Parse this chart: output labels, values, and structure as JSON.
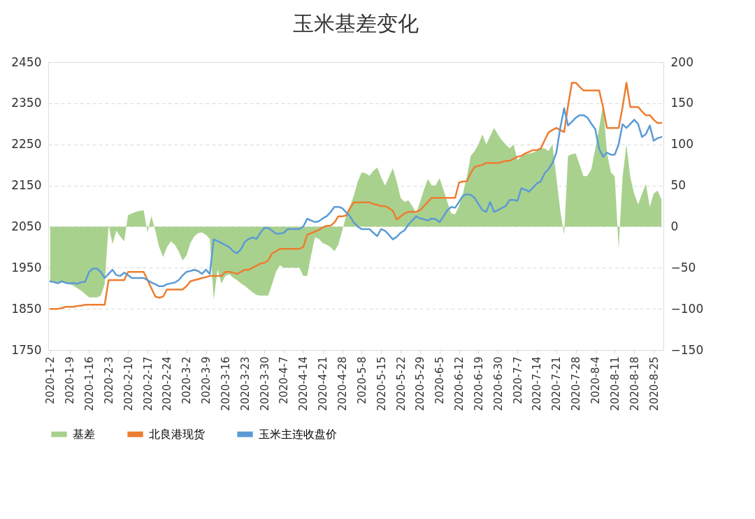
{
  "chart_data": {
    "type": "line",
    "title": "玉米基差变化",
    "categories": [
      "2020-1-2",
      null,
      null,
      null,
      null,
      "2020-1-9",
      null,
      null,
      null,
      null,
      "2020-1-16",
      null,
      null,
      null,
      null,
      "2020-2-3",
      null,
      null,
      null,
      null,
      "2020-2-10",
      null,
      null,
      null,
      null,
      "2020-2-17",
      null,
      null,
      null,
      null,
      "2020-2-24",
      null,
      null,
      null,
      null,
      "2020-3-2",
      null,
      null,
      null,
      null,
      "2020-3-9",
      null,
      null,
      null,
      null,
      "2020-3-16",
      null,
      null,
      null,
      null,
      "2020-3-23",
      null,
      null,
      null,
      null,
      "2020-3-30",
      null,
      null,
      null,
      null,
      "2020-4-7",
      null,
      null,
      null,
      null,
      "2020-4-14",
      null,
      null,
      null,
      null,
      "2020-4-21",
      null,
      null,
      null,
      null,
      "2020-4-28",
      null,
      null,
      null,
      null,
      "2020-5-8",
      null,
      null,
      null,
      null,
      "2020-5-15",
      null,
      null,
      null,
      null,
      "2020-5-22",
      null,
      null,
      null,
      null,
      "2020-5-29",
      null,
      null,
      null,
      null,
      "2020-6-5",
      null,
      null,
      null,
      null,
      "2020-6-12",
      null,
      null,
      null,
      null,
      "2020-6-19",
      null,
      null,
      null,
      null,
      "2020-6-30",
      null,
      null,
      null,
      null,
      "2020-7-7",
      null,
      null,
      null,
      null,
      "2020-7-14",
      null,
      null,
      null,
      null,
      "2020-7-21",
      null,
      null,
      null,
      null,
      "2020-7-28",
      null,
      null,
      null,
      null,
      "2020-8-4",
      null,
      null,
      null,
      null,
      "2020-8-11",
      null,
      null,
      null,
      null,
      "2020-8-18",
      null,
      null,
      null,
      null,
      "2020-8-25",
      null,
      null
    ],
    "series": [
      {
        "name": "基差",
        "type": "area",
        "axis": "y2",
        "color": "#a9d18e",
        "values": [
          -67,
          -68,
          -68,
          -68,
          -68,
          -70,
          -72,
          -75,
          -78,
          -82,
          -86,
          -86,
          -86,
          -84,
          -70,
          2,
          -21,
          -5,
          -12,
          -18,
          14,
          16,
          18,
          19,
          20,
          -7,
          13,
          -5,
          -25,
          -37,
          -25,
          -18,
          -22,
          -30,
          -41,
          -35,
          -20,
          -12,
          -8,
          -7,
          -10,
          -15,
          -89,
          -52,
          -69,
          -60,
          -58,
          -62,
          -65,
          -69,
          -72,
          -76,
          -80,
          -83,
          -84,
          -84,
          -84,
          -70,
          -55,
          -47,
          -50,
          -50,
          -50,
          -50,
          -50,
          -60,
          -60,
          -35,
          -13,
          -15,
          -20,
          -22,
          -25,
          -30,
          -22,
          -5,
          13,
          25,
          38,
          55,
          66,
          65,
          62,
          68,
          72,
          60,
          50,
          60,
          71,
          55,
          35,
          30,
          32,
          25,
          16,
          30,
          45,
          58,
          50,
          50,
          59,
          45,
          30,
          16,
          15,
          25,
          40,
          60,
          86,
          92,
          100,
          112,
          100,
          110,
          120,
          112,
          105,
          100,
          95,
          100,
          81,
          85,
          88,
          89,
          90,
          92,
          95,
          95,
          92,
          100,
          60,
          20,
          -10,
          86,
          88,
          89,
          75,
          61,
          62,
          70,
          95,
          120,
          149,
          90,
          66,
          61,
          -27,
          60,
          100,
          60,
          40,
          27,
          40,
          52,
          24,
          40,
          44,
          33
        ]
      },
      {
        "name": "北良港现货",
        "color": "#ed7d31",
        "values": [
          1850,
          1850,
          1850,
          1852,
          1855,
          1855,
          1855,
          1857,
          1858,
          1860,
          1860,
          1860,
          1860,
          1860,
          1860,
          1920,
          1920,
          1920,
          1920,
          1920,
          1940,
          1940,
          1940,
          1940,
          1940,
          1920,
          1900,
          1880,
          1877,
          1880,
          1897,
          1897,
          1897,
          1897,
          1897,
          1905,
          1917,
          1920,
          1922,
          1925,
          1927,
          1930,
          1930,
          1930,
          1930,
          1940,
          1940,
          1938,
          1935,
          1940,
          1945,
          1945,
          1950,
          1955,
          1960,
          1962,
          1968,
          1985,
          1990,
          1996,
          1996,
          1996,
          1996,
          1996,
          1996,
          2000,
          2030,
          2034,
          2038,
          2042,
          2048,
          2052,
          2052,
          2060,
          2075,
          2075,
          2077,
          2095,
          2109,
          2109,
          2109,
          2109,
          2109,
          2105,
          2103,
          2100,
          2100,
          2095,
          2089,
          2067,
          2075,
          2082,
          2086,
          2086,
          2086,
          2090,
          2100,
          2110,
          2120,
          2120,
          2120,
          2120,
          2120,
          2120,
          2120,
          2157,
          2160,
          2160,
          2180,
          2195,
          2198,
          2200,
          2205,
          2205,
          2205,
          2205,
          2207,
          2210,
          2210,
          2215,
          2220,
          2222,
          2228,
          2232,
          2236,
          2236,
          2240,
          2260,
          2279,
          2285,
          2290,
          2285,
          2280,
          2344,
          2400,
          2400,
          2390,
          2381,
          2381,
          2381,
          2381,
          2381,
          2340,
          2290,
          2290,
          2290,
          2290,
          2340,
          2400,
          2341,
          2341,
          2341,
          2330,
          2321,
          2321,
          2310,
          2302,
          2302
        ]
      },
      {
        "name": "玉米主连收盘价",
        "color": "#5b9bd5",
        "values": [
          1917,
          1915,
          1912,
          1917,
          1913,
          1912,
          1913,
          1911,
          1915,
          1916,
          1940,
          1948,
          1948,
          1940,
          1925,
          1935,
          1945,
          1932,
          1930,
          1938,
          1932,
          1925,
          1925,
          1925,
          1925,
          1920,
          1914,
          1910,
          1905,
          1905,
          1910,
          1912,
          1914,
          1920,
          1931,
          1940,
          1942,
          1945,
          1942,
          1935,
          1945,
          1935,
          2019,
          2015,
          2010,
          2005,
          2000,
          1990,
          1985,
          1995,
          2013,
          2020,
          2024,
          2020,
          2035,
          2047,
          2047,
          2040,
          2033,
          2033,
          2035,
          2044,
          2044,
          2044,
          2044,
          2050,
          2069,
          2065,
          2061,
          2063,
          2070,
          2075,
          2085,
          2098,
          2098,
          2095,
          2085,
          2075,
          2060,
          2050,
          2044,
          2044,
          2044,
          2035,
          2027,
          2044,
          2040,
          2030,
          2019,
          2025,
          2035,
          2041,
          2055,
          2065,
          2075,
          2070,
          2068,
          2065,
          2070,
          2068,
          2061,
          2075,
          2090,
          2098,
          2096,
          2110,
          2125,
          2129,
          2127,
          2120,
          2105,
          2090,
          2086,
          2110,
          2086,
          2090,
          2095,
          2100,
          2115,
          2115,
          2113,
          2143,
          2140,
          2135,
          2145,
          2155,
          2160,
          2180,
          2190,
          2205,
          2230,
          2290,
          2338,
          2296,
          2305,
          2315,
          2321,
          2321,
          2315,
          2300,
          2287,
          2239,
          2220,
          2230,
          2225,
          2225,
          2250,
          2299,
          2290,
          2300,
          2310,
          2300,
          2268,
          2275,
          2296,
          2259,
          2265,
          2268
        ]
      }
    ],
    "ylim": [
      1750,
      2450
    ],
    "yticks": [
      1750,
      1850,
      1950,
      2050,
      2150,
      2250,
      2350,
      2450
    ],
    "y2lim": [
      -150,
      200
    ],
    "y2ticks": [
      -150,
      -100,
      -50,
      0,
      50,
      100,
      150,
      200
    ],
    "grid": "y",
    "legend": "bottom"
  }
}
